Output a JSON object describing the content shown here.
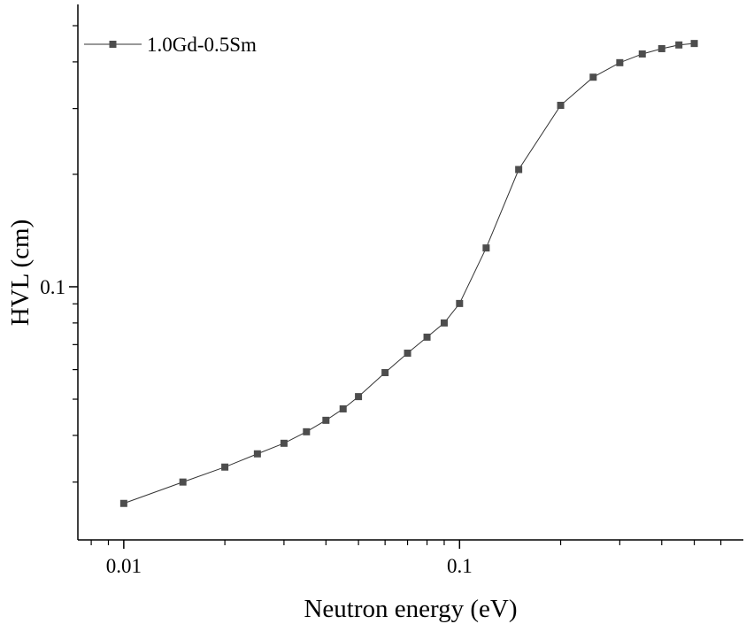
{
  "chart_data": {
    "type": "line",
    "xlabel": "Neutron energy (eV)",
    "ylabel": "HVL (cm)",
    "xscale": "log",
    "yscale": "log",
    "x": [
      0.01,
      0.015,
      0.02,
      0.025,
      0.03,
      0.035,
      0.04,
      0.045,
      0.05,
      0.06,
      0.07,
      0.08,
      0.09,
      0.1,
      0.12,
      0.15,
      0.2,
      0.25,
      0.3,
      0.35,
      0.4,
      0.45,
      0.5
    ],
    "series": [
      {
        "name": "1.0Gd-0.5Sm",
        "color": "#4d4d4d",
        "values": [
          0.0263,
          0.03,
          0.0329,
          0.0357,
          0.0381,
          0.0409,
          0.0439,
          0.0471,
          0.0508,
          0.0589,
          0.0664,
          0.0733,
          0.08,
          0.0902,
          0.127,
          0.206,
          0.306,
          0.364,
          0.398,
          0.42,
          0.434,
          0.444,
          0.448
        ]
      }
    ],
    "xlim": [
      0.0073,
      0.7
    ],
    "ylim": [
      0.021,
      0.57
    ],
    "xticks": [
      0.01,
      0.1
    ],
    "yticks": [
      0.1
    ],
    "xminorticks": [
      0.008,
      0.009,
      0.02,
      0.03,
      0.04,
      0.05,
      0.06,
      0.07,
      0.08,
      0.09,
      0.2,
      0.3,
      0.4,
      0.5,
      0.6
    ],
    "yminorticks": [
      0.03,
      0.04,
      0.05,
      0.06,
      0.07,
      0.08,
      0.09,
      0.2,
      0.3,
      0.4,
      0.5
    ],
    "legend": "upper left"
  }
}
